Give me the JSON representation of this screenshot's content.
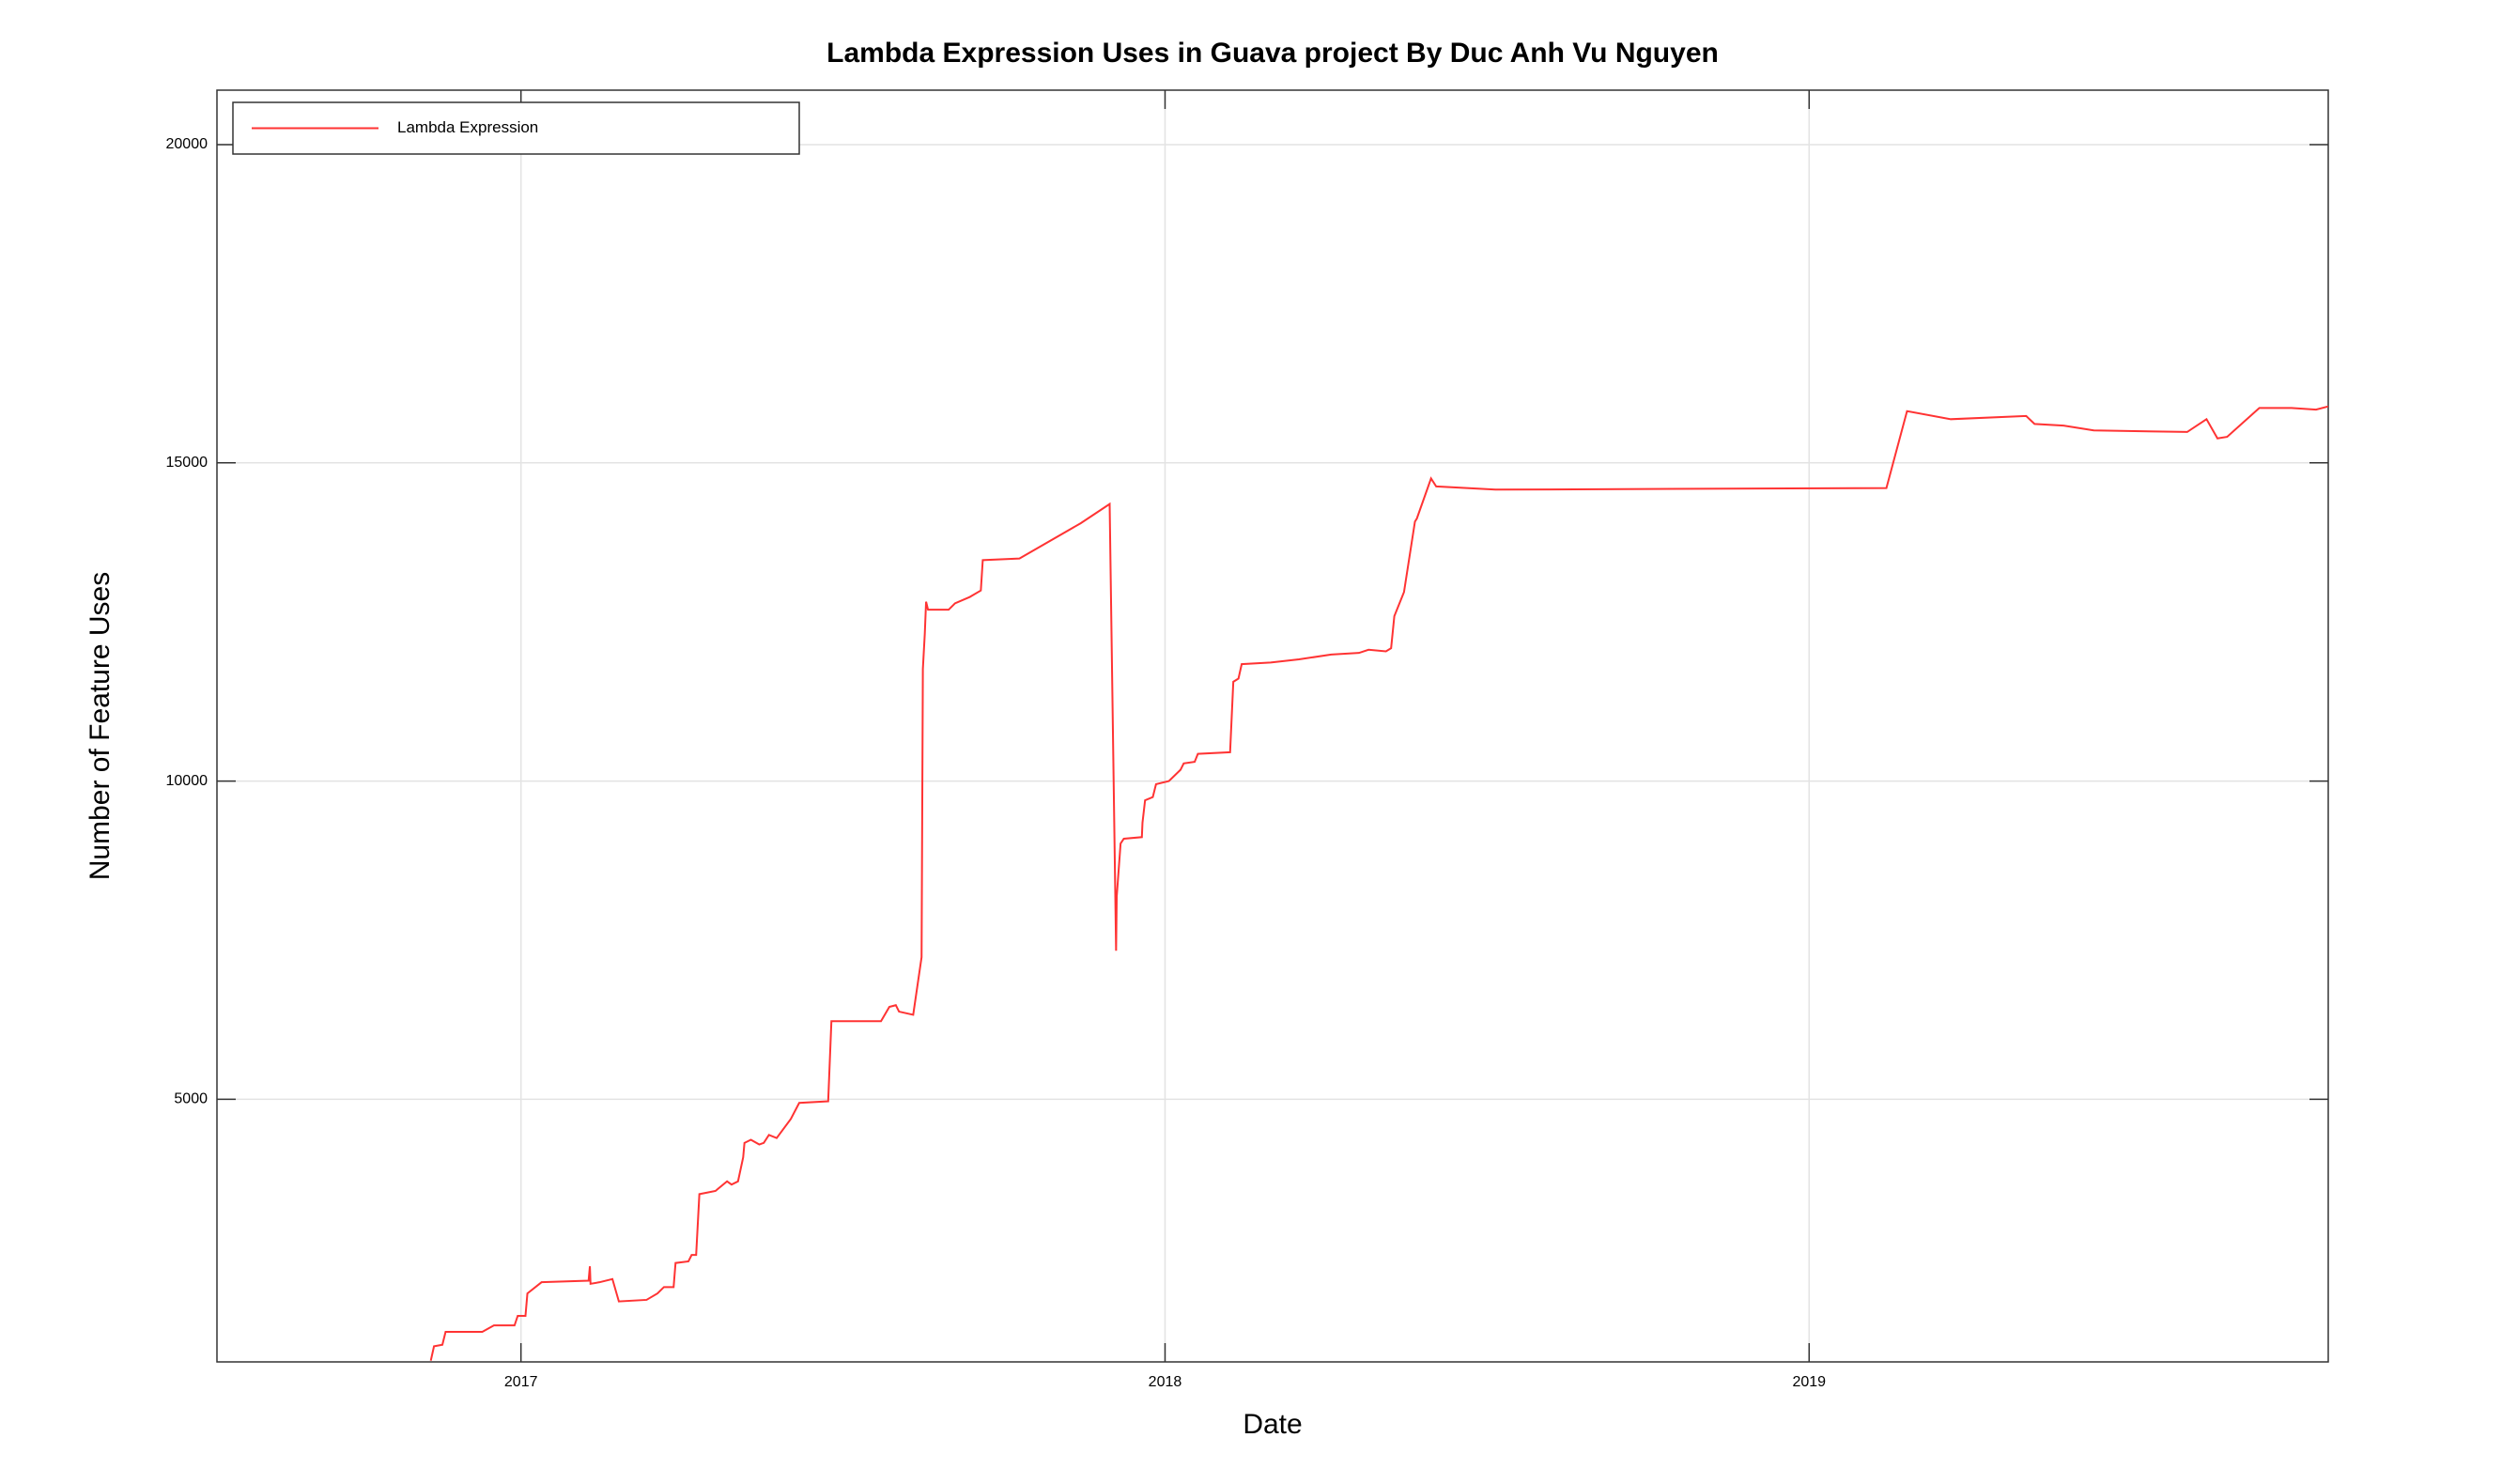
{
  "chart_data": {
    "type": "line",
    "title": "Lambda Expression Uses in Guava project By Duc Anh Vu Nguyen",
    "x_label": "Date",
    "y_label": "Number of Feature Uses",
    "x": [
      2016.86,
      2016.865,
      2016.878,
      2016.883,
      2016.94,
      2016.958,
      2016.99,
      2016.995,
      2017.007,
      2017.01,
      2017.032,
      2017.105,
      2017.107,
      2017.108,
      2017.122,
      2017.142,
      2017.152,
      2017.195,
      2017.212,
      2017.222,
      2017.237,
      2017.24,
      2017.26,
      2017.265,
      2017.272,
      2017.277,
      2017.302,
      2017.32,
      2017.327,
      2017.337,
      2017.345,
      2017.347,
      2017.357,
      2017.37,
      2017.377,
      2017.385,
      2017.397,
      2017.419,
      2017.432,
      2017.477,
      2017.482,
      2017.559,
      2017.572,
      2017.582,
      2017.587,
      2017.609,
      2017.622,
      2017.624,
      2017.627,
      2017.629,
      2017.632,
      2017.664,
      2017.674,
      2017.697,
      2017.714,
      2017.717,
      2017.774,
      2017.869,
      2017.914,
      2017.924,
      2017.925,
      2017.931,
      2017.936,
      2017.964,
      2017.965,
      2017.969,
      2017.981,
      2017.986,
      2018.006,
      2018.024,
      2018.029,
      2018.046,
      2018.051,
      2018.101,
      2018.106,
      2018.114,
      2018.119,
      2018.164,
      2018.208,
      2018.258,
      2018.301,
      2018.316,
      2018.343,
      2018.351,
      2018.356,
      2018.371,
      2018.388,
      2018.391,
      2018.413,
      2018.421,
      2018.513,
      2019.12,
      2019.152,
      2019.22,
      2019.337,
      2019.35,
      2019.395,
      2019.442,
      2019.587,
      2019.617,
      2019.634,
      2019.649,
      2019.699,
      2019.749,
      2019.787,
      2019.806
    ],
    "series": [
      {
        "name": "Lambda Expression",
        "color": "#ff3333",
        "values": [
          892,
          1118,
          1143,
          1345,
          1345,
          1446,
          1446,
          1597,
          1597,
          1949,
          2125,
          2150,
          2376,
          2100,
          2125,
          2175,
          1823,
          1848,
          1949,
          2049,
          2049,
          2427,
          2452,
          2553,
          2553,
          3509,
          3559,
          3710,
          3660,
          3710,
          4087,
          4314,
          4364,
          4289,
          4314,
          4440,
          4390,
          4691,
          4943,
          4968,
          6226,
          6226,
          6452,
          6478,
          6377,
          6327,
          7232,
          11761,
          12315,
          12818,
          12692,
          12692,
          12793,
          12893,
          12994,
          13472,
          13497,
          14051,
          14353,
          7333,
          8188,
          9019,
          9094,
          9119,
          9346,
          9698,
          9748,
          9950,
          10000,
          10176,
          10277,
          10302,
          10428,
          10453,
          11560,
          11610,
          11837,
          11862,
          11912,
          11988,
          12013,
          12063,
          12038,
          12088,
          12592,
          12969,
          14076,
          14126,
          14755,
          14629,
          14579,
          14604,
          15812,
          15686,
          15736,
          15611,
          15586,
          15510,
          15485,
          15686,
          15384,
          15409,
          15862,
          15862,
          15837,
          15887
        ]
      }
    ],
    "xlim": [
      2016.528,
      2019.806
    ],
    "xticks": [
      2017,
      2018,
      2019
    ],
    "ylim": [
      873,
      20856
    ],
    "yticks": [
      5000,
      10000,
      15000,
      20000
    ],
    "grid": true,
    "legend": "upper left"
  }
}
